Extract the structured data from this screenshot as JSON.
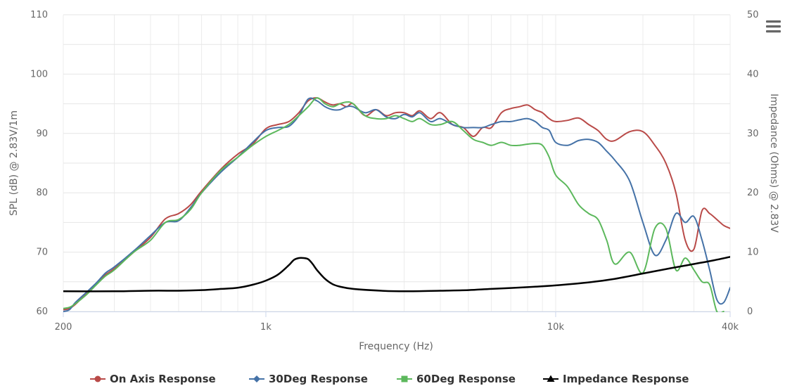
{
  "menu": {
    "icon": "hamburger-menu-icon"
  },
  "chart_data": {
    "type": "line",
    "title": "",
    "xlabel": "Frequency (Hz)",
    "ylabel": "SPL (dB) @ 2.83V/1m",
    "y2label": "Impedance (Ohms) @ 2.83V",
    "xscale": "log",
    "xlim": [
      200,
      40000
    ],
    "ylim": [
      60,
      110
    ],
    "y2lim": [
      0,
      50
    ],
    "grid": true,
    "legend_position": "bottom",
    "x_ticks": [
      {
        "value": 200,
        "label": "200"
      },
      {
        "value": 1000,
        "label": "1k"
      },
      {
        "value": 10000,
        "label": "10k"
      },
      {
        "value": 40000,
        "label": "40k"
      }
    ],
    "y_ticks": [
      {
        "value": 60,
        "label": "60"
      },
      {
        "value": 70,
        "label": "70"
      },
      {
        "value": 80,
        "label": "80"
      },
      {
        "value": 90,
        "label": "90"
      },
      {
        "value": 100,
        "label": "100"
      },
      {
        "value": 110,
        "label": "110"
      }
    ],
    "y2_ticks": [
      {
        "value": 0,
        "label": "0"
      },
      {
        "value": 10,
        "label": "10"
      },
      {
        "value": 20,
        "label": "20"
      },
      {
        "value": 30,
        "label": "30"
      },
      {
        "value": 40,
        "label": "40"
      },
      {
        "value": 50,
        "label": "50"
      }
    ],
    "series": [
      {
        "name": "On Axis Response",
        "color": "#b94a48",
        "marker": "circle",
        "axis": "left",
        "x": [
          200,
          210,
          220,
          240,
          260,
          280,
          300,
          350,
          400,
          450,
          500,
          550,
          600,
          700,
          800,
          900,
          1000,
          1100,
          1200,
          1300,
          1400,
          1500,
          1600,
          1700,
          1800,
          1900,
          2000,
          2200,
          2400,
          2600,
          2800,
          3000,
          3200,
          3400,
          3700,
          4000,
          4400,
          4800,
          5200,
          5600,
          6000,
          6500,
          7000,
          7500,
          8000,
          8500,
          9000,
          9500,
          10000,
          11000,
          12000,
          13000,
          14000,
          15000,
          16000,
          18000,
          20000,
          22000,
          24000,
          26000,
          28000,
          30000,
          32000,
          34000,
          36000,
          38000,
          40000
        ],
        "y": [
          60.3,
          60.5,
          61.2,
          63.0,
          64.7,
          66.2,
          67.2,
          70.0,
          72.5,
          75.6,
          76.5,
          78.0,
          80.3,
          84.0,
          86.5,
          88.2,
          90.8,
          91.5,
          92.0,
          93.5,
          95.5,
          96.0,
          95.3,
          94.8,
          95.0,
          94.5,
          95.0,
          93.0,
          94.0,
          93.0,
          93.5,
          93.5,
          93.0,
          93.8,
          92.5,
          93.5,
          91.5,
          91.0,
          89.5,
          91.0,
          91.0,
          93.5,
          94.2,
          94.5,
          94.8,
          94.0,
          93.5,
          92.5,
          92.0,
          92.2,
          92.6,
          91.5,
          90.5,
          89.0,
          88.8,
          90.3,
          90.3,
          88.0,
          85.0,
          80.0,
          72.0,
          70.5,
          77.0,
          76.5,
          75.5,
          74.5,
          74.0
        ]
      },
      {
        "name": "30Deg Response",
        "color": "#4572a7",
        "marker": "diamond",
        "axis": "left",
        "x": [
          200,
          210,
          220,
          240,
          260,
          280,
          300,
          350,
          400,
          450,
          500,
          550,
          600,
          700,
          800,
          900,
          1000,
          1100,
          1200,
          1300,
          1400,
          1500,
          1600,
          1700,
          1800,
          1900,
          2000,
          2200,
          2400,
          2600,
          2800,
          3000,
          3200,
          3400,
          3700,
          4000,
          4400,
          4800,
          5200,
          5600,
          6000,
          6500,
          7000,
          7500,
          8000,
          8500,
          9000,
          9500,
          10000,
          11000,
          12000,
          13000,
          14000,
          15000,
          16000,
          18000,
          20000,
          22000,
          24000,
          26000,
          28000,
          30000,
          32000,
          34000,
          36000,
          38000,
          40000
        ],
        "y": [
          60.0,
          60.3,
          61.5,
          63.2,
          64.8,
          66.5,
          67.5,
          70.2,
          72.8,
          75.0,
          75.3,
          77.5,
          80.0,
          83.5,
          86.0,
          88.5,
          90.5,
          91.0,
          91.2,
          93.0,
          95.8,
          95.5,
          94.5,
          94.0,
          94.0,
          94.5,
          94.5,
          93.5,
          94.0,
          92.8,
          92.5,
          93.2,
          92.8,
          93.5,
          92.0,
          92.5,
          91.5,
          91.0,
          91.0,
          91.0,
          91.5,
          92.0,
          92.0,
          92.3,
          92.5,
          92.0,
          91.0,
          90.5,
          88.5,
          88.0,
          88.8,
          89.0,
          88.5,
          87.0,
          85.5,
          82.0,
          75.0,
          69.5,
          72.0,
          76.5,
          75.0,
          76.0,
          72.0,
          67.0,
          62.0,
          61.5,
          64.0
        ]
      },
      {
        "name": "60Deg Response",
        "color": "#5cb85c",
        "marker": "square",
        "axis": "left",
        "x": [
          200,
          210,
          220,
          240,
          260,
          280,
          300,
          350,
          400,
          450,
          500,
          550,
          600,
          700,
          800,
          900,
          1000,
          1100,
          1200,
          1300,
          1400,
          1500,
          1600,
          1700,
          1800,
          1900,
          2000,
          2200,
          2400,
          2600,
          2800,
          3000,
          3200,
          3400,
          3700,
          4000,
          4400,
          4800,
          5200,
          5600,
          6000,
          6500,
          7000,
          7500,
          8000,
          8500,
          9000,
          9500,
          10000,
          11000,
          12000,
          13000,
          14000,
          15000,
          16000,
          18000,
          20000,
          22000,
          24000,
          26000,
          28000,
          30000,
          32000,
          34000,
          36000,
          38000
        ],
        "y": [
          60.5,
          60.7,
          61.3,
          62.8,
          64.5,
          66.0,
          67.0,
          70.0,
          72.0,
          75.0,
          75.5,
          77.2,
          80.0,
          83.8,
          86.0,
          88.0,
          89.5,
          90.5,
          91.5,
          93.0,
          94.5,
          96.0,
          95.0,
          94.5,
          95.0,
          95.3,
          95.0,
          93.0,
          92.5,
          92.5,
          93.0,
          92.5,
          92.0,
          92.5,
          91.5,
          91.5,
          92.0,
          90.5,
          89.0,
          88.5,
          88.0,
          88.5,
          88.0,
          88.0,
          88.2,
          88.3,
          88.0,
          86.0,
          83.0,
          81.0,
          78.0,
          76.5,
          75.5,
          72.0,
          68.0,
          70.0,
          66.5,
          74.0,
          74.0,
          67.0,
          69.0,
          67.0,
          65.0,
          64.5,
          60.0,
          60.0
        ]
      },
      {
        "name": "Impedance Response",
        "color": "#000000",
        "marker": "triangle",
        "axis": "right",
        "x": [
          200,
          300,
          400,
          500,
          600,
          700,
          800,
          900,
          1000,
          1100,
          1200,
          1250,
          1300,
          1350,
          1400,
          1450,
          1500,
          1600,
          1700,
          1800,
          2000,
          2500,
          3000,
          4000,
          5000,
          6000,
          8000,
          10000,
          13000,
          16000,
          20000,
          25000,
          30000,
          35000,
          40000
        ],
        "y": [
          3.4,
          3.4,
          3.5,
          3.5,
          3.6,
          3.8,
          4.0,
          4.5,
          5.2,
          6.2,
          7.8,
          8.7,
          9.0,
          9.0,
          8.8,
          8.0,
          7.0,
          5.5,
          4.6,
          4.2,
          3.8,
          3.5,
          3.4,
          3.5,
          3.6,
          3.8,
          4.1,
          4.4,
          4.9,
          5.5,
          6.4,
          7.3,
          8.0,
          8.6,
          9.2
        ]
      }
    ]
  }
}
